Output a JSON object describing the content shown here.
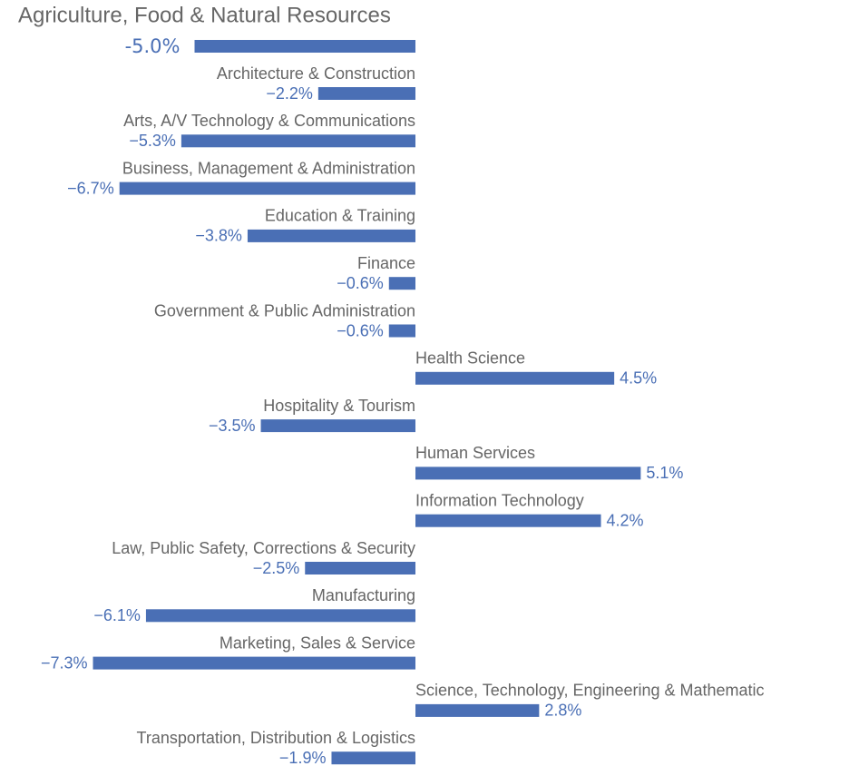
{
  "chart_data": {
    "type": "bar",
    "orientation": "horizontal",
    "color": "#4a6fb5",
    "categories": [
      "Agriculture, Food & Natural Resources",
      "Architecture & Construction",
      "Arts, A/V Technology & Communications",
      "Business, Management & Administration",
      "Education & Training",
      "Finance",
      "Government & Public Administration",
      "Health Science",
      "Hospitality & Tourism",
      "Human Services",
      "Information Technology",
      "Law, Public Safety, Corrections & Security",
      "Manufacturing",
      "Marketing, Sales & Service",
      "Science, Technology, Engineering & Mathematic",
      "Transportation, Distribution & Logistics"
    ],
    "values": [
      -5.0,
      -2.2,
      -5.3,
      -6.7,
      -3.8,
      -0.6,
      -0.6,
      4.5,
      -3.5,
      5.1,
      4.2,
      -2.5,
      -6.1,
      -7.3,
      2.8,
      -1.9
    ],
    "value_labels": [
      "-5.0%",
      "−2.2%",
      "−5.3%",
      "−6.7%",
      "−3.8%",
      "−0.6%",
      "−0.6%",
      "4.5%",
      "−3.5%",
      "5.1%",
      "4.2%",
      "−2.5%",
      "−6.1%",
      "−7.3%",
      "2.8%",
      "−1.9%"
    ]
  }
}
